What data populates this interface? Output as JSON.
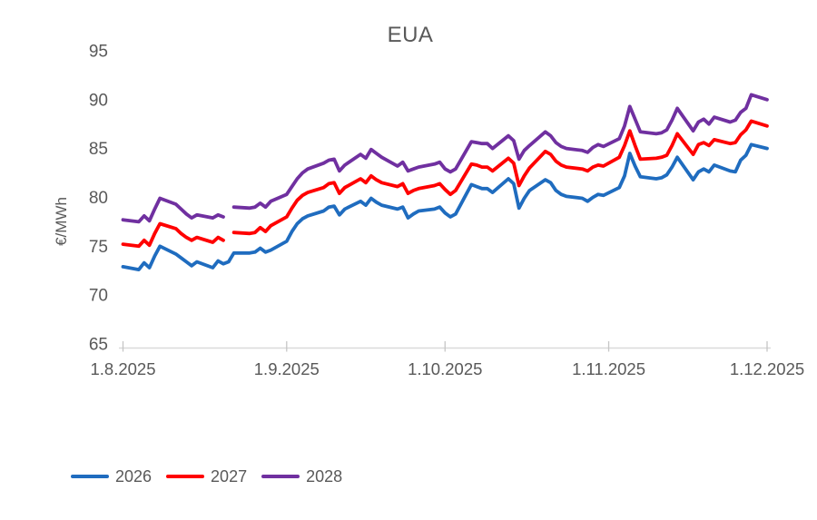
{
  "chart_title": "EUA",
  "colors": {
    "text": "#595959",
    "axis_line": "#D9D9D9",
    "tick_mark": "#C6C6C6",
    "background": "#FFFFFF",
    "series_2026": "#1F6CBF",
    "series_2027": "#FF0000",
    "series_2028": "#7030A0"
  },
  "chart_data": {
    "type": "line",
    "title": "EUA",
    "xlabel": "",
    "ylabel": "€/MWh",
    "ylim": [
      65,
      95
    ],
    "y_ticks": [
      "65",
      "70",
      "75",
      "80",
      "85",
      "90",
      "95"
    ],
    "x_tick_labels": [
      "1.8.2025",
      "1.9.2025",
      "1.10.2025",
      "1.11.2025",
      "1.12.2025"
    ],
    "grid": false,
    "legend_position": "bottom-left",
    "dates": [
      "1.8.2025",
      "4.8.2025",
      "5.8.2025",
      "6.8.2025",
      "7.8.2025",
      "8.8.2025",
      "11.8.2025",
      "12.8.2025",
      "13.8.2025",
      "14.8.2025",
      "15.8.2025",
      "18.8.2025",
      "19.8.2025",
      "20.8.2025",
      "21.8.2025",
      "22.8.2025",
      "25.8.2025",
      "26.8.2025",
      "27.8.2025",
      "28.8.2025",
      "29.8.2025",
      "1.9.2025",
      "2.9.2025",
      "3.9.2025",
      "4.9.2025",
      "5.9.2025",
      "8.9.2025",
      "9.9.2025",
      "10.9.2025",
      "11.9.2025",
      "12.9.2025",
      "15.9.2025",
      "16.9.2025",
      "17.9.2025",
      "18.9.2025",
      "19.9.2025",
      "22.9.2025",
      "23.9.2025",
      "24.9.2025",
      "25.9.2025",
      "26.9.2025",
      "29.9.2025",
      "30.9.2025",
      "1.10.2025",
      "2.10.2025",
      "3.10.2025",
      "6.10.2025",
      "7.10.2025",
      "8.10.2025",
      "9.10.2025",
      "10.10.2025",
      "13.10.2025",
      "14.10.2025",
      "15.10.2025",
      "16.10.2025",
      "17.10.2025",
      "20.10.2025",
      "21.10.2025",
      "22.10.2025",
      "23.10.2025",
      "24.10.2025",
      "27.10.2025",
      "28.10.2025",
      "29.10.2025",
      "30.10.2025",
      "31.10.2025",
      "3.11.2025",
      "4.11.2025",
      "5.11.2025",
      "6.11.2025",
      "7.11.2025",
      "10.11.2025",
      "11.11.2025",
      "12.11.2025",
      "13.11.2025",
      "14.11.2025",
      "17.11.2025",
      "18.11.2025",
      "19.11.2025",
      "20.11.2025",
      "21.11.2025",
      "24.11.2025",
      "25.11.2025",
      "26.11.2025",
      "27.11.2025",
      "28.11.2025",
      "1.12.2025"
    ],
    "series": [
      {
        "name": "2026",
        "color": "#1F6CBF",
        "values": [
          72.9,
          72.6,
          73.3,
          72.8,
          74.0,
          75.0,
          74.2,
          73.8,
          73.4,
          73.0,
          73.4,
          72.8,
          73.5,
          73.2,
          73.4,
          74.3,
          74.3,
          74.4,
          74.8,
          74.4,
          74.6,
          75.5,
          76.5,
          77.3,
          77.8,
          78.1,
          78.6,
          79.0,
          79.1,
          78.2,
          78.8,
          79.6,
          79.2,
          79.9,
          79.5,
          79.2,
          78.8,
          79.0,
          77.9,
          78.3,
          78.6,
          78.8,
          79.0,
          78.4,
          78.0,
          78.3,
          81.3,
          81.1,
          80.9,
          80.9,
          80.5,
          81.9,
          81.4,
          78.9,
          79.9,
          80.7,
          81.8,
          81.5,
          80.7,
          80.3,
          80.1,
          79.9,
          79.6,
          80.0,
          80.3,
          80.2,
          81.0,
          82.2,
          84.5,
          83.2,
          82.1,
          81.9,
          82.0,
          82.3,
          83.1,
          84.1,
          81.8,
          82.6,
          82.9,
          82.6,
          83.3,
          82.7,
          82.6,
          83.8,
          84.3,
          85.4,
          85.0
        ]
      },
      {
        "name": "2027",
        "color": "#FF0000",
        "values": [
          75.2,
          75.0,
          75.6,
          75.1,
          76.3,
          77.3,
          76.8,
          76.3,
          75.9,
          75.6,
          75.9,
          75.4,
          75.9,
          75.6,
          null,
          76.4,
          76.3,
          76.4,
          76.9,
          76.5,
          77.1,
          78.0,
          78.9,
          79.7,
          80.2,
          80.5,
          81.0,
          81.4,
          81.5,
          80.4,
          81.0,
          81.9,
          81.5,
          82.2,
          81.8,
          81.5,
          81.1,
          81.4,
          80.4,
          80.7,
          80.9,
          81.2,
          81.4,
          80.8,
          80.3,
          80.7,
          83.4,
          83.3,
          83.1,
          83.1,
          82.7,
          84.0,
          83.5,
          81.2,
          82.2,
          83.0,
          84.7,
          84.4,
          83.7,
          83.3,
          83.1,
          82.9,
          82.7,
          83.1,
          83.3,
          83.2,
          84.1,
          85.3,
          86.8,
          85.3,
          83.9,
          84.0,
          84.1,
          84.3,
          85.3,
          86.5,
          84.4,
          85.4,
          85.6,
          85.3,
          85.9,
          85.5,
          85.6,
          86.4,
          86.9,
          87.8,
          87.3
        ]
      },
      {
        "name": "2028",
        "color": "#7030A0",
        "values": [
          77.7,
          77.5,
          78.1,
          77.6,
          78.8,
          79.9,
          79.3,
          78.8,
          78.3,
          77.9,
          78.2,
          77.9,
          78.2,
          78.0,
          null,
          79.0,
          78.9,
          79.0,
          79.4,
          79.0,
          79.6,
          80.3,
          81.1,
          81.9,
          82.5,
          82.9,
          83.5,
          83.8,
          83.9,
          82.7,
          83.3,
          84.4,
          84.0,
          84.9,
          84.5,
          84.1,
          83.2,
          83.6,
          82.7,
          82.9,
          83.1,
          83.4,
          83.6,
          82.9,
          82.6,
          82.9,
          85.7,
          85.6,
          85.5,
          85.5,
          85.0,
          86.3,
          85.8,
          83.9,
          84.8,
          85.3,
          86.7,
          86.3,
          85.6,
          85.2,
          85.0,
          84.8,
          84.6,
          85.1,
          85.4,
          85.2,
          86.0,
          87.3,
          89.3,
          88.0,
          86.7,
          86.5,
          86.6,
          86.9,
          87.9,
          89.1,
          86.8,
          87.7,
          88.0,
          87.5,
          88.2,
          87.7,
          87.9,
          88.7,
          89.1,
          90.5,
          90.0
        ]
      }
    ]
  }
}
